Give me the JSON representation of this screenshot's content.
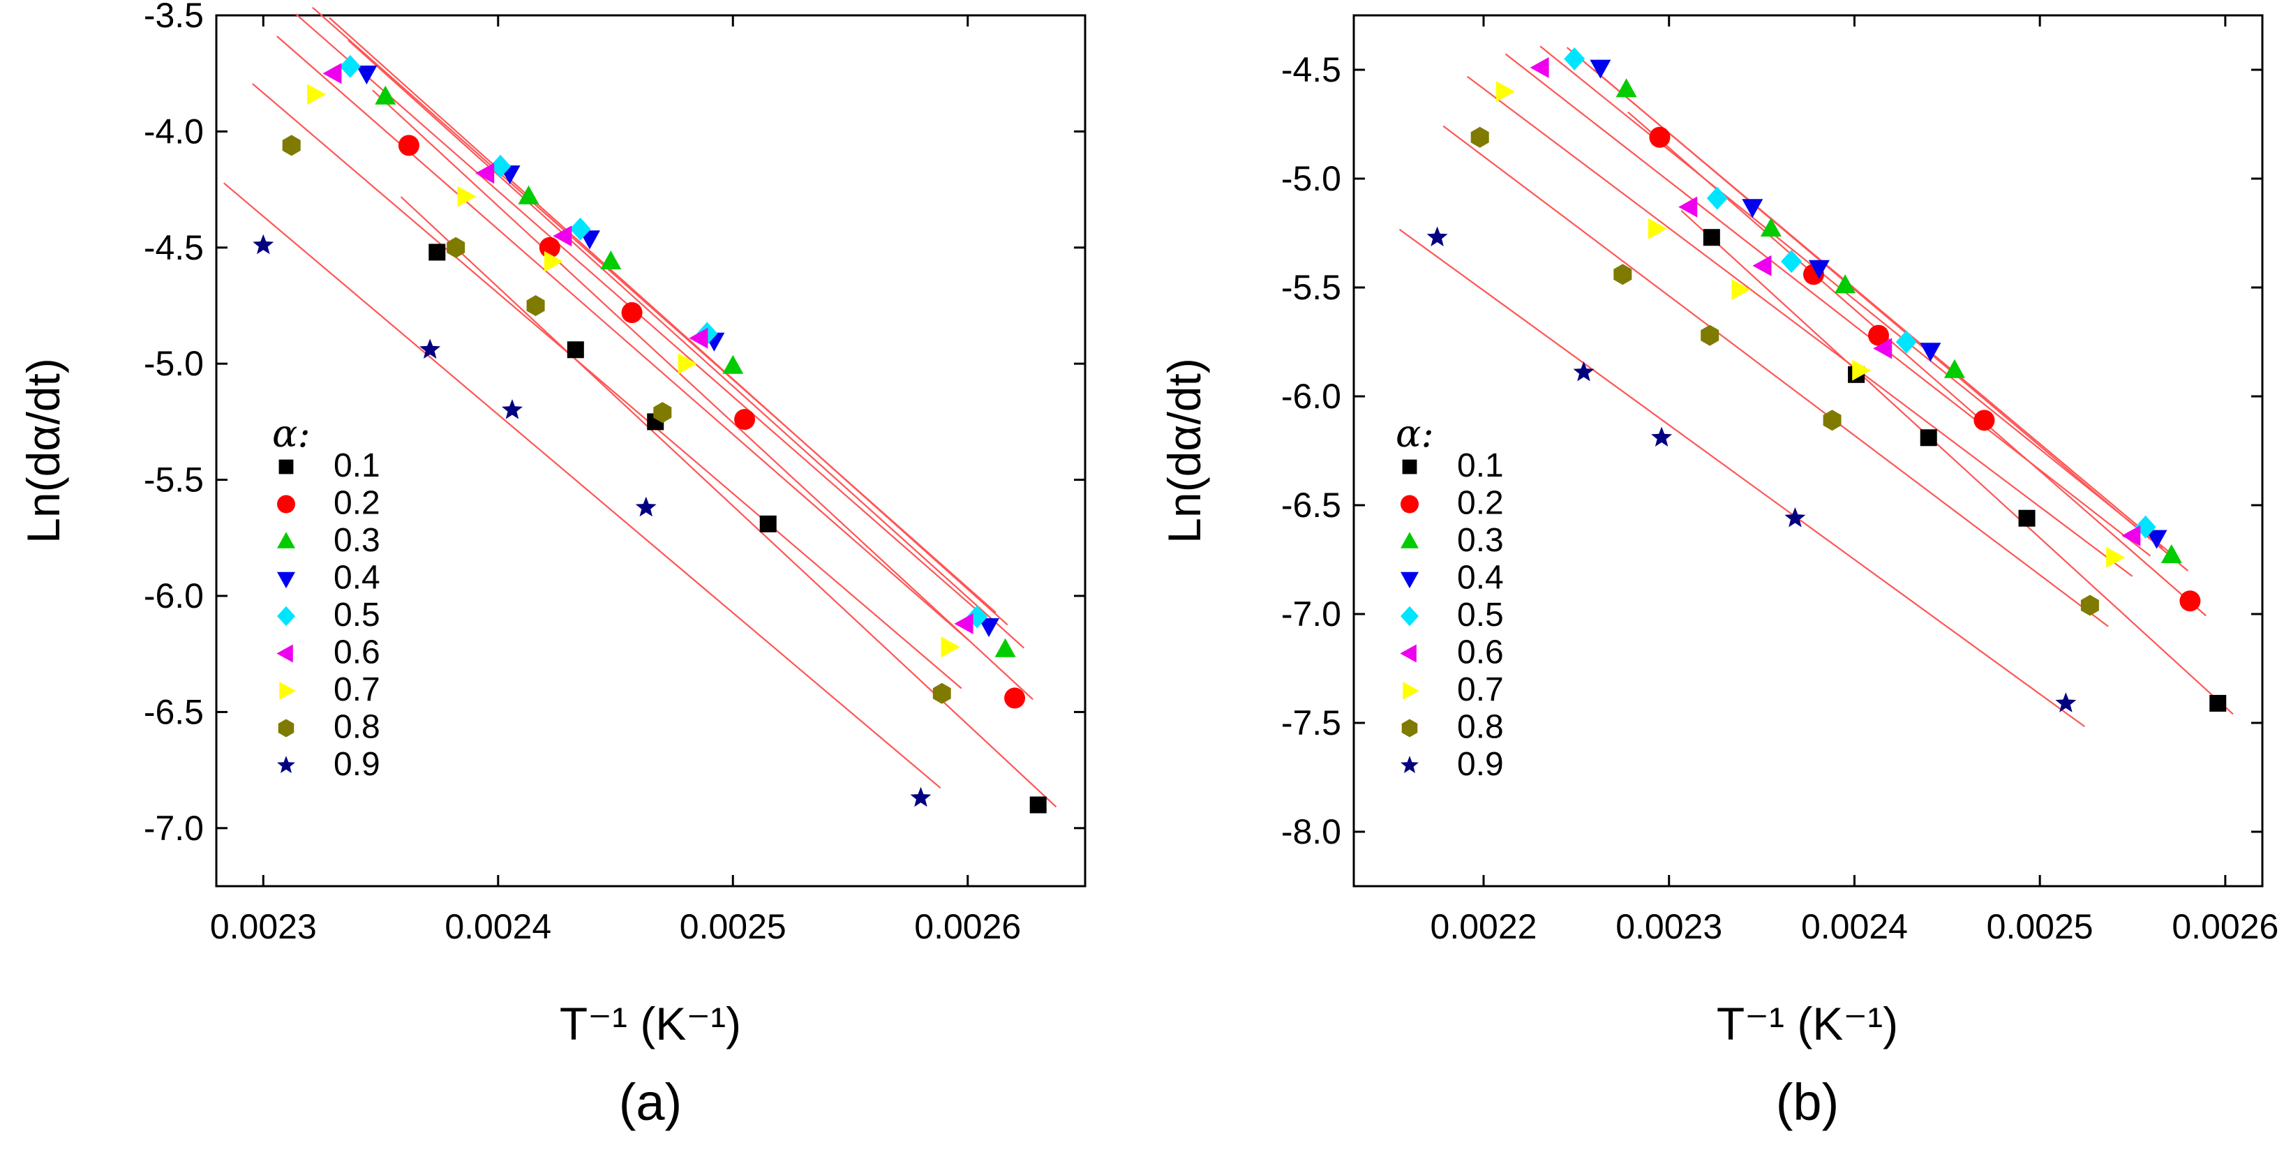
{
  "chart_data": [
    {
      "type": "scatter",
      "panel_label": "(a)",
      "xlabel": "T⁻¹ (K⁻¹)",
      "ylabel": "Ln(dα/dt)",
      "xlim": [
        0.00228,
        0.00265
      ],
      "ylim": [
        -7.25,
        -3.5
      ],
      "xticks": [
        0.0023,
        0.0024,
        0.0025,
        0.0026
      ],
      "xtick_labels": [
        "0.0023",
        "0.0024",
        "0.0025",
        "0.0026"
      ],
      "yticks": [
        -3.5,
        -4.0,
        -4.5,
        -5.0,
        -5.5,
        -6.0,
        -6.5,
        -7.0
      ],
      "ytick_labels": [
        "-3.5",
        "-4.0",
        "-4.5",
        "-5.0",
        "-5.5",
        "-6.0",
        "-6.5",
        "-7.0"
      ],
      "legend": {
        "title": "α:",
        "placement": "left"
      },
      "fit_line_color": "#ff5555",
      "series": [
        {
          "name": "0.1",
          "marker": "square",
          "color": "#000000",
          "x": [
            0.002374,
            0.002433,
            0.002467,
            0.002515,
            0.00263
          ],
          "y": [
            -4.52,
            -4.94,
            -5.25,
            -5.69,
            -6.9
          ]
        },
        {
          "name": "0.2",
          "marker": "circle",
          "color": "#ff0000",
          "x": [
            0.002362,
            0.002422,
            0.002457,
            0.002505,
            0.00262
          ],
          "y": [
            -4.06,
            -4.5,
            -4.78,
            -5.24,
            -6.44
          ]
        },
        {
          "name": "0.3",
          "marker": "triangle-up",
          "color": "#00cc00",
          "x": [
            0.002352,
            0.002413,
            0.002448,
            0.0025,
            0.002616
          ],
          "y": [
            -3.85,
            -4.28,
            -4.56,
            -5.01,
            -6.23
          ]
        },
        {
          "name": "0.4",
          "marker": "triangle-down",
          "color": "#0000ee",
          "x": [
            0.002344,
            0.002405,
            0.002439,
            0.002492,
            0.002609
          ],
          "y": [
            -3.75,
            -4.18,
            -4.46,
            -4.9,
            -6.13
          ]
        },
        {
          "name": "0.5",
          "marker": "diamond",
          "color": "#00e5ff",
          "x": [
            0.002337,
            0.002401,
            0.002435,
            0.002489,
            0.002604
          ],
          "y": [
            -3.72,
            -4.15,
            -4.42,
            -4.87,
            -6.09
          ]
        },
        {
          "name": "0.6",
          "marker": "triangle-left",
          "color": "#ee00ee",
          "x": [
            0.00233,
            0.002395,
            0.002428,
            0.002486,
            0.002599
          ],
          "y": [
            -3.75,
            -4.18,
            -4.45,
            -4.89,
            -6.12
          ]
        },
        {
          "name": "0.7",
          "marker": "triangle-right",
          "color": "#ffff00",
          "x": [
            0.002322,
            0.002386,
            0.002423,
            0.00248,
            0.002592
          ],
          "y": [
            -3.84,
            -4.28,
            -4.56,
            -5.0,
            -6.22
          ]
        },
        {
          "name": "0.8",
          "marker": "hexagon",
          "color": "#7f7a00",
          "x": [
            0.002312,
            0.002382,
            0.002416,
            0.00247,
            0.002589
          ],
          "y": [
            -4.06,
            -4.5,
            -4.75,
            -5.21,
            -6.42
          ]
        },
        {
          "name": "0.9",
          "marker": "star",
          "color": "#000080",
          "x": [
            0.0023,
            0.002371,
            0.002406,
            0.002463,
            0.00258
          ],
          "y": [
            -4.49,
            -4.94,
            -5.2,
            -5.62,
            -6.87
          ]
        }
      ]
    },
    {
      "type": "scatter",
      "panel_label": "(b)",
      "xlabel": "T⁻¹ (K⁻¹)",
      "ylabel": "Ln(dα/dt)",
      "xlim": [
        0.00213,
        0.00262
      ],
      "ylim": [
        -8.25,
        -4.25
      ],
      "xticks": [
        0.0022,
        0.0023,
        0.0024,
        0.0025,
        0.0026
      ],
      "xtick_labels": [
        "0.0022",
        "0.0023",
        "0.0024",
        "0.0025",
        "0.0026"
      ],
      "yticks": [
        -4.5,
        -5.0,
        -5.5,
        -6.0,
        -6.5,
        -7.0,
        -7.5,
        -8.0
      ],
      "ytick_labels": [
        "-4.5",
        "-5.0",
        "-5.5",
        "-6.0",
        "-6.5",
        "-7.0",
        "-7.5",
        "-8.0"
      ],
      "legend": {
        "title": "α:",
        "placement": "left"
      },
      "fit_line_color": "#ff5555",
      "series": [
        {
          "name": "0.1",
          "marker": "square",
          "color": "#000000",
          "x": [
            0.002323,
            0.002401,
            0.00244,
            0.002493,
            0.002596
          ],
          "y": [
            -5.27,
            -5.9,
            -6.19,
            -6.56,
            -7.41
          ]
        },
        {
          "name": "0.2",
          "marker": "circle",
          "color": "#ff0000",
          "x": [
            0.002295,
            0.002378,
            0.002413,
            0.00247,
            0.002581
          ],
          "y": [
            -4.81,
            -5.44,
            -5.72,
            -6.11,
            -6.94
          ]
        },
        {
          "name": "0.3",
          "marker": "triangle-up",
          "color": "#00cc00",
          "x": [
            0.002277,
            0.002355,
            0.002395,
            0.002454,
            0.002571
          ],
          "y": [
            -4.59,
            -5.23,
            -5.49,
            -5.88,
            -6.73
          ]
        },
        {
          "name": "0.4",
          "marker": "triangle-down",
          "color": "#0000ee",
          "x": [
            0.002263,
            0.002345,
            0.002381,
            0.002441,
            0.002563
          ],
          "y": [
            -4.49,
            -5.13,
            -5.41,
            -5.79,
            -6.65
          ]
        },
        {
          "name": "0.5",
          "marker": "diamond",
          "color": "#00e5ff",
          "x": [
            0.002249,
            0.002326,
            0.002366,
            0.002428,
            0.002557
          ],
          "y": [
            -4.45,
            -5.09,
            -5.38,
            -5.75,
            -6.6
          ]
        },
        {
          "name": "0.6",
          "marker": "triangle-left",
          "color": "#ee00ee",
          "x": [
            0.002231,
            0.002311,
            0.002351,
            0.002416,
            0.00255
          ],
          "y": [
            -4.49,
            -5.13,
            -5.4,
            -5.78,
            -6.64
          ]
        },
        {
          "name": "0.7",
          "marker": "triangle-right",
          "color": "#ffff00",
          "x": [
            0.002211,
            0.002293,
            0.002338,
            0.002403,
            0.00254
          ],
          "y": [
            -4.6,
            -5.23,
            -5.51,
            -5.88,
            -6.74
          ]
        },
        {
          "name": "0.8",
          "marker": "hexagon",
          "color": "#7f7a00",
          "x": [
            0.002198,
            0.002275,
            0.002322,
            0.002388,
            0.002527
          ],
          "y": [
            -4.81,
            -5.44,
            -5.72,
            -6.11,
            -6.96
          ]
        },
        {
          "name": "0.9",
          "marker": "star",
          "color": "#000080",
          "x": [
            0.002175,
            0.002254,
            0.002296,
            0.002368,
            0.002514
          ],
          "y": [
            -5.27,
            -5.89,
            -6.19,
            -6.56,
            -7.41
          ]
        }
      ]
    }
  ]
}
